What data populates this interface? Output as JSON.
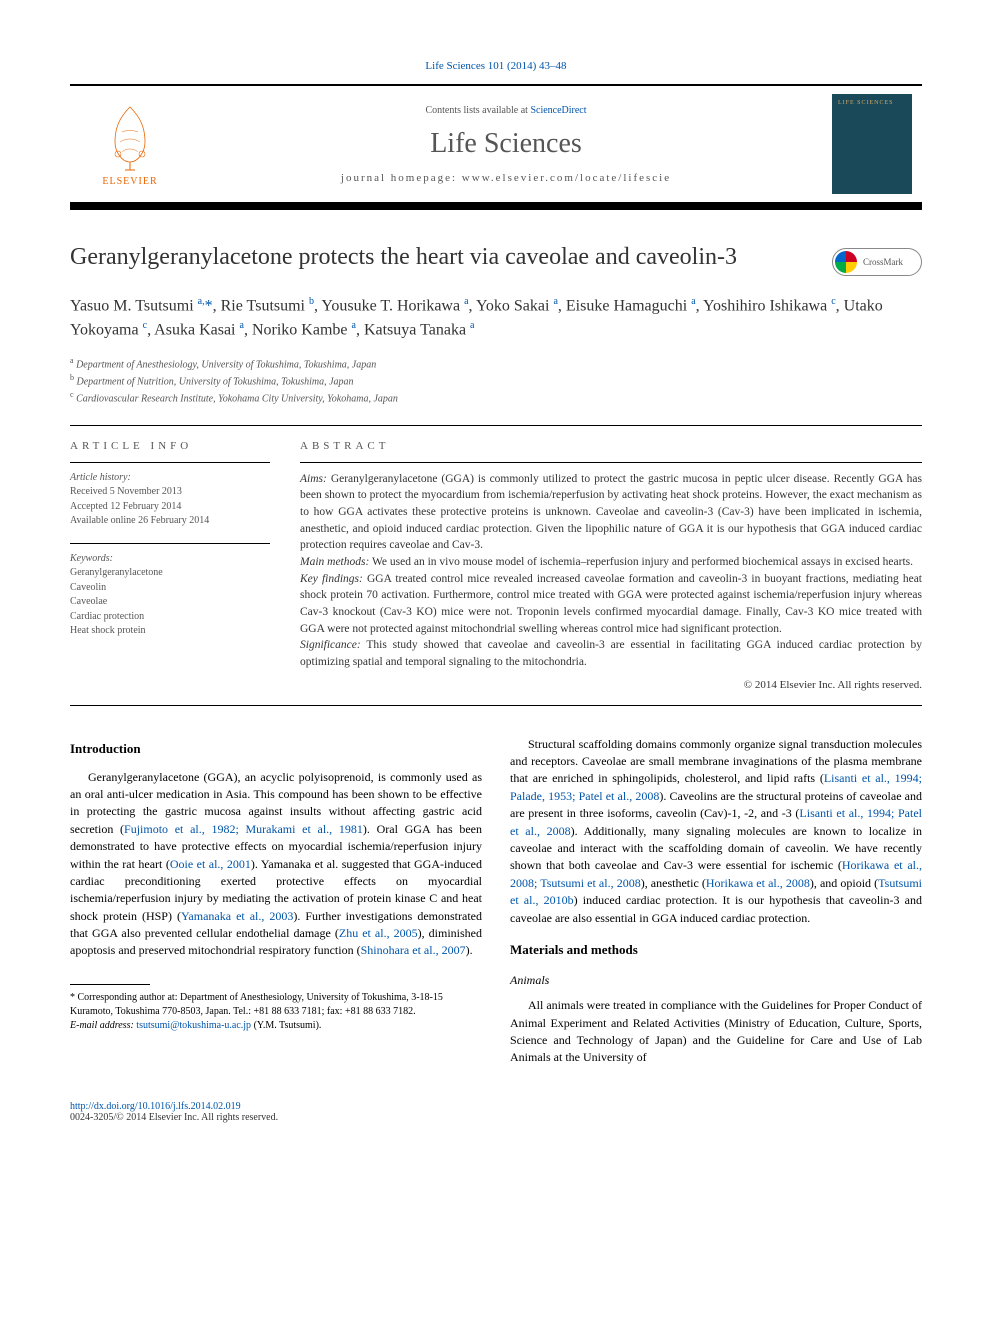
{
  "journal": {
    "citation_link": "Life Sciences 101 (2014) 43–48",
    "contents_line_prefix": "Contents lists available at ",
    "contents_link": "ScienceDirect",
    "name": "Life Sciences",
    "homepage_label": "journal homepage: www.elsevier.com/locate/lifescie",
    "publisher_logo_text": "ELSEVIER",
    "cover_bg": "#1a4a5a"
  },
  "crossmark": {
    "label": "CrossMark"
  },
  "article": {
    "title": "Geranylgeranylacetone protects the heart via caveolae and caveolin-3",
    "authors_html": "Yasuo M. Tsutsumi <sup>a,</sup><span class='star'>*</span>, Rie Tsutsumi <sup>b</sup>, Yousuke T. Horikawa <sup>a</sup>, Yoko Sakai <sup>a</sup>, Eisuke Hamaguchi <sup>a</sup>, Yoshihiro Ishikawa <sup>c</sup>, Utako Yokoyama <sup>c</sup>, Asuka Kasai <sup>a</sup>, Noriko Kambe <sup>a</sup>, Katsuya Tanaka <sup>a</sup>",
    "affiliations": [
      {
        "sup": "a",
        "text": "Department of Anesthesiology, University of Tokushima, Tokushima, Japan"
      },
      {
        "sup": "b",
        "text": "Department of Nutrition, University of Tokushima, Tokushima, Japan"
      },
      {
        "sup": "c",
        "text": "Cardiovascular Research Institute, Yokohama City University, Yokohama, Japan"
      }
    ]
  },
  "article_info": {
    "heading": "article info",
    "history_label": "Article history:",
    "history": [
      "Received 5 November 2013",
      "Accepted 12 February 2014",
      "Available online 26 February 2014"
    ],
    "keywords_label": "Keywords:",
    "keywords": [
      "Geranylgeranylacetone",
      "Caveolin",
      "Caveolae",
      "Cardiac protection",
      "Heat shock protein"
    ]
  },
  "abstract": {
    "heading": "abstract",
    "aims_label": "Aims:",
    "aims": "Geranylgeranylacetone (GGA) is commonly utilized to protect the gastric mucosa in peptic ulcer disease. Recently GGA has been shown to protect the myocardium from ischemia/reperfusion by activating heat shock proteins. However, the exact mechanism as to how GGA activates these protective proteins is unknown. Caveolae and caveolin-3 (Cav-3) have been implicated in ischemia, anesthetic, and opioid induced cardiac protection. Given the lipophilic nature of GGA it is our hypothesis that GGA induced cardiac protection requires caveolae and Cav-3.",
    "methods_label": "Main methods:",
    "methods": "We used an in vivo mouse model of ischemia–reperfusion injury and performed biochemical assays in excised hearts.",
    "findings_label": "Key findings:",
    "findings": "GGA treated control mice revealed increased caveolae formation and caveolin-3 in buoyant fractions, mediating heat shock protein 70 activation. Furthermore, control mice treated with GGA were protected against ischemia/reperfusion injury whereas Cav-3 knockout (Cav-3 KO) mice were not. Troponin levels confirmed myocardial damage. Finally, Cav-3 KO mice treated with GGA were not protected against mitochondrial swelling whereas control mice had significant protection.",
    "significance_label": "Significance:",
    "significance": "This study showed that caveolae and caveolin-3 are essential in facilitating GGA induced cardiac protection by optimizing spatial and temporal signaling to the mitochondria.",
    "copyright": "© 2014 Elsevier Inc. All rights reserved."
  },
  "body": {
    "left": {
      "heading": "Introduction",
      "p1_pre": "Geranylgeranylacetone (GGA), an acyclic polyisoprenoid, is commonly used as an oral anti-ulcer medication in Asia. This compound has been shown to be effective in protecting the gastric mucosa against insults without affecting gastric acid secretion (",
      "p1_cite1": "Fujimoto et al., 1982; Murakami et al., 1981",
      "p1_mid1": "). Oral GGA has been demonstrated to have protective effects on myocardial ischemia/reperfusion injury within the rat heart (",
      "p1_cite2": "Ooie et al., 2001",
      "p1_mid2": "). Yamanaka et al. suggested that GGA-induced cardiac preconditioning exerted protective effects on myocardial ischemia/reperfusion injury by mediating the activation of protein kinase C and heat shock protein (HSP) (",
      "p1_cite3": "Yamanaka et al., 2003",
      "p1_mid3": "). Further investigations demonstrated that GGA also prevented cellular endothelial damage (",
      "p1_cite4": "Zhu et al., 2005",
      "p1_mid4": "), diminished apoptosis and preserved mitochondrial respiratory function (",
      "p1_cite5": "Shinohara et al., 2007",
      "p1_post": ")."
    },
    "right": {
      "p1_pre": "Structural scaffolding domains commonly organize signal transduction molecules and receptors. Caveolae are small membrane invaginations of the plasma membrane that are enriched in sphingolipids, cholesterol, and lipid rafts (",
      "p1_cite1": "Lisanti et al., 1994; Palade, 1953; Patel et al., 2008",
      "p1_mid1": "). Caveolins are the structural proteins of caveolae and are present in three isoforms, caveolin (Cav)-1, -2, and -3 (",
      "p1_cite2": "Lisanti et al., 1994; Patel et al., 2008",
      "p1_mid2": "). Additionally, many signaling molecules are known to localize in caveolae and interact with the scaffolding domain of caveolin. We have recently shown that both caveolae and Cav-3 were essential for ischemic (",
      "p1_cite3": "Horikawa et al., 2008; Tsutsumi et al., 2008",
      "p1_mid3": "), anesthetic (",
      "p1_cite4": "Horikawa et al., 2008",
      "p1_mid4": "), and opioid (",
      "p1_cite5": "Tsutsumi et al., 2010b",
      "p1_post": ") induced cardiac protection. It is our hypothesis that caveolin-3 and caveolae are also essential in GGA induced cardiac protection.",
      "mm_heading": "Materials and methods",
      "animals_heading": "Animals",
      "animals_p": "All animals were treated in compliance with the Guidelines for Proper Conduct of Animal Experiment and Related Activities (Ministry of Education, Culture, Sports, Science and Technology of Japan) and the Guideline for Care and Use of Lab Animals at the University of"
    }
  },
  "footnotes": {
    "corr_label": "* Corresponding author at: Department of Anesthesiology, University of Tokushima, 3-18-15 Kuramoto, Tokushima 770-8503, Japan. Tel.: +81 88 633 7181; fax: +81 88 633 7182.",
    "email_label": "E-mail address: ",
    "email": "tsutsumi@tokushima-u.ac.jp",
    "email_whom": " (Y.M. Tsutsumi)."
  },
  "bottom": {
    "doi": "http://dx.doi.org/10.1016/j.lfs.2014.02.019",
    "issn_line": "0024-3205/© 2014 Elsevier Inc. All rights reserved."
  },
  "colors": {
    "link": "#0055aa",
    "elsevier_orange": "#eb6500",
    "text": "#333333",
    "muted": "#555555"
  }
}
